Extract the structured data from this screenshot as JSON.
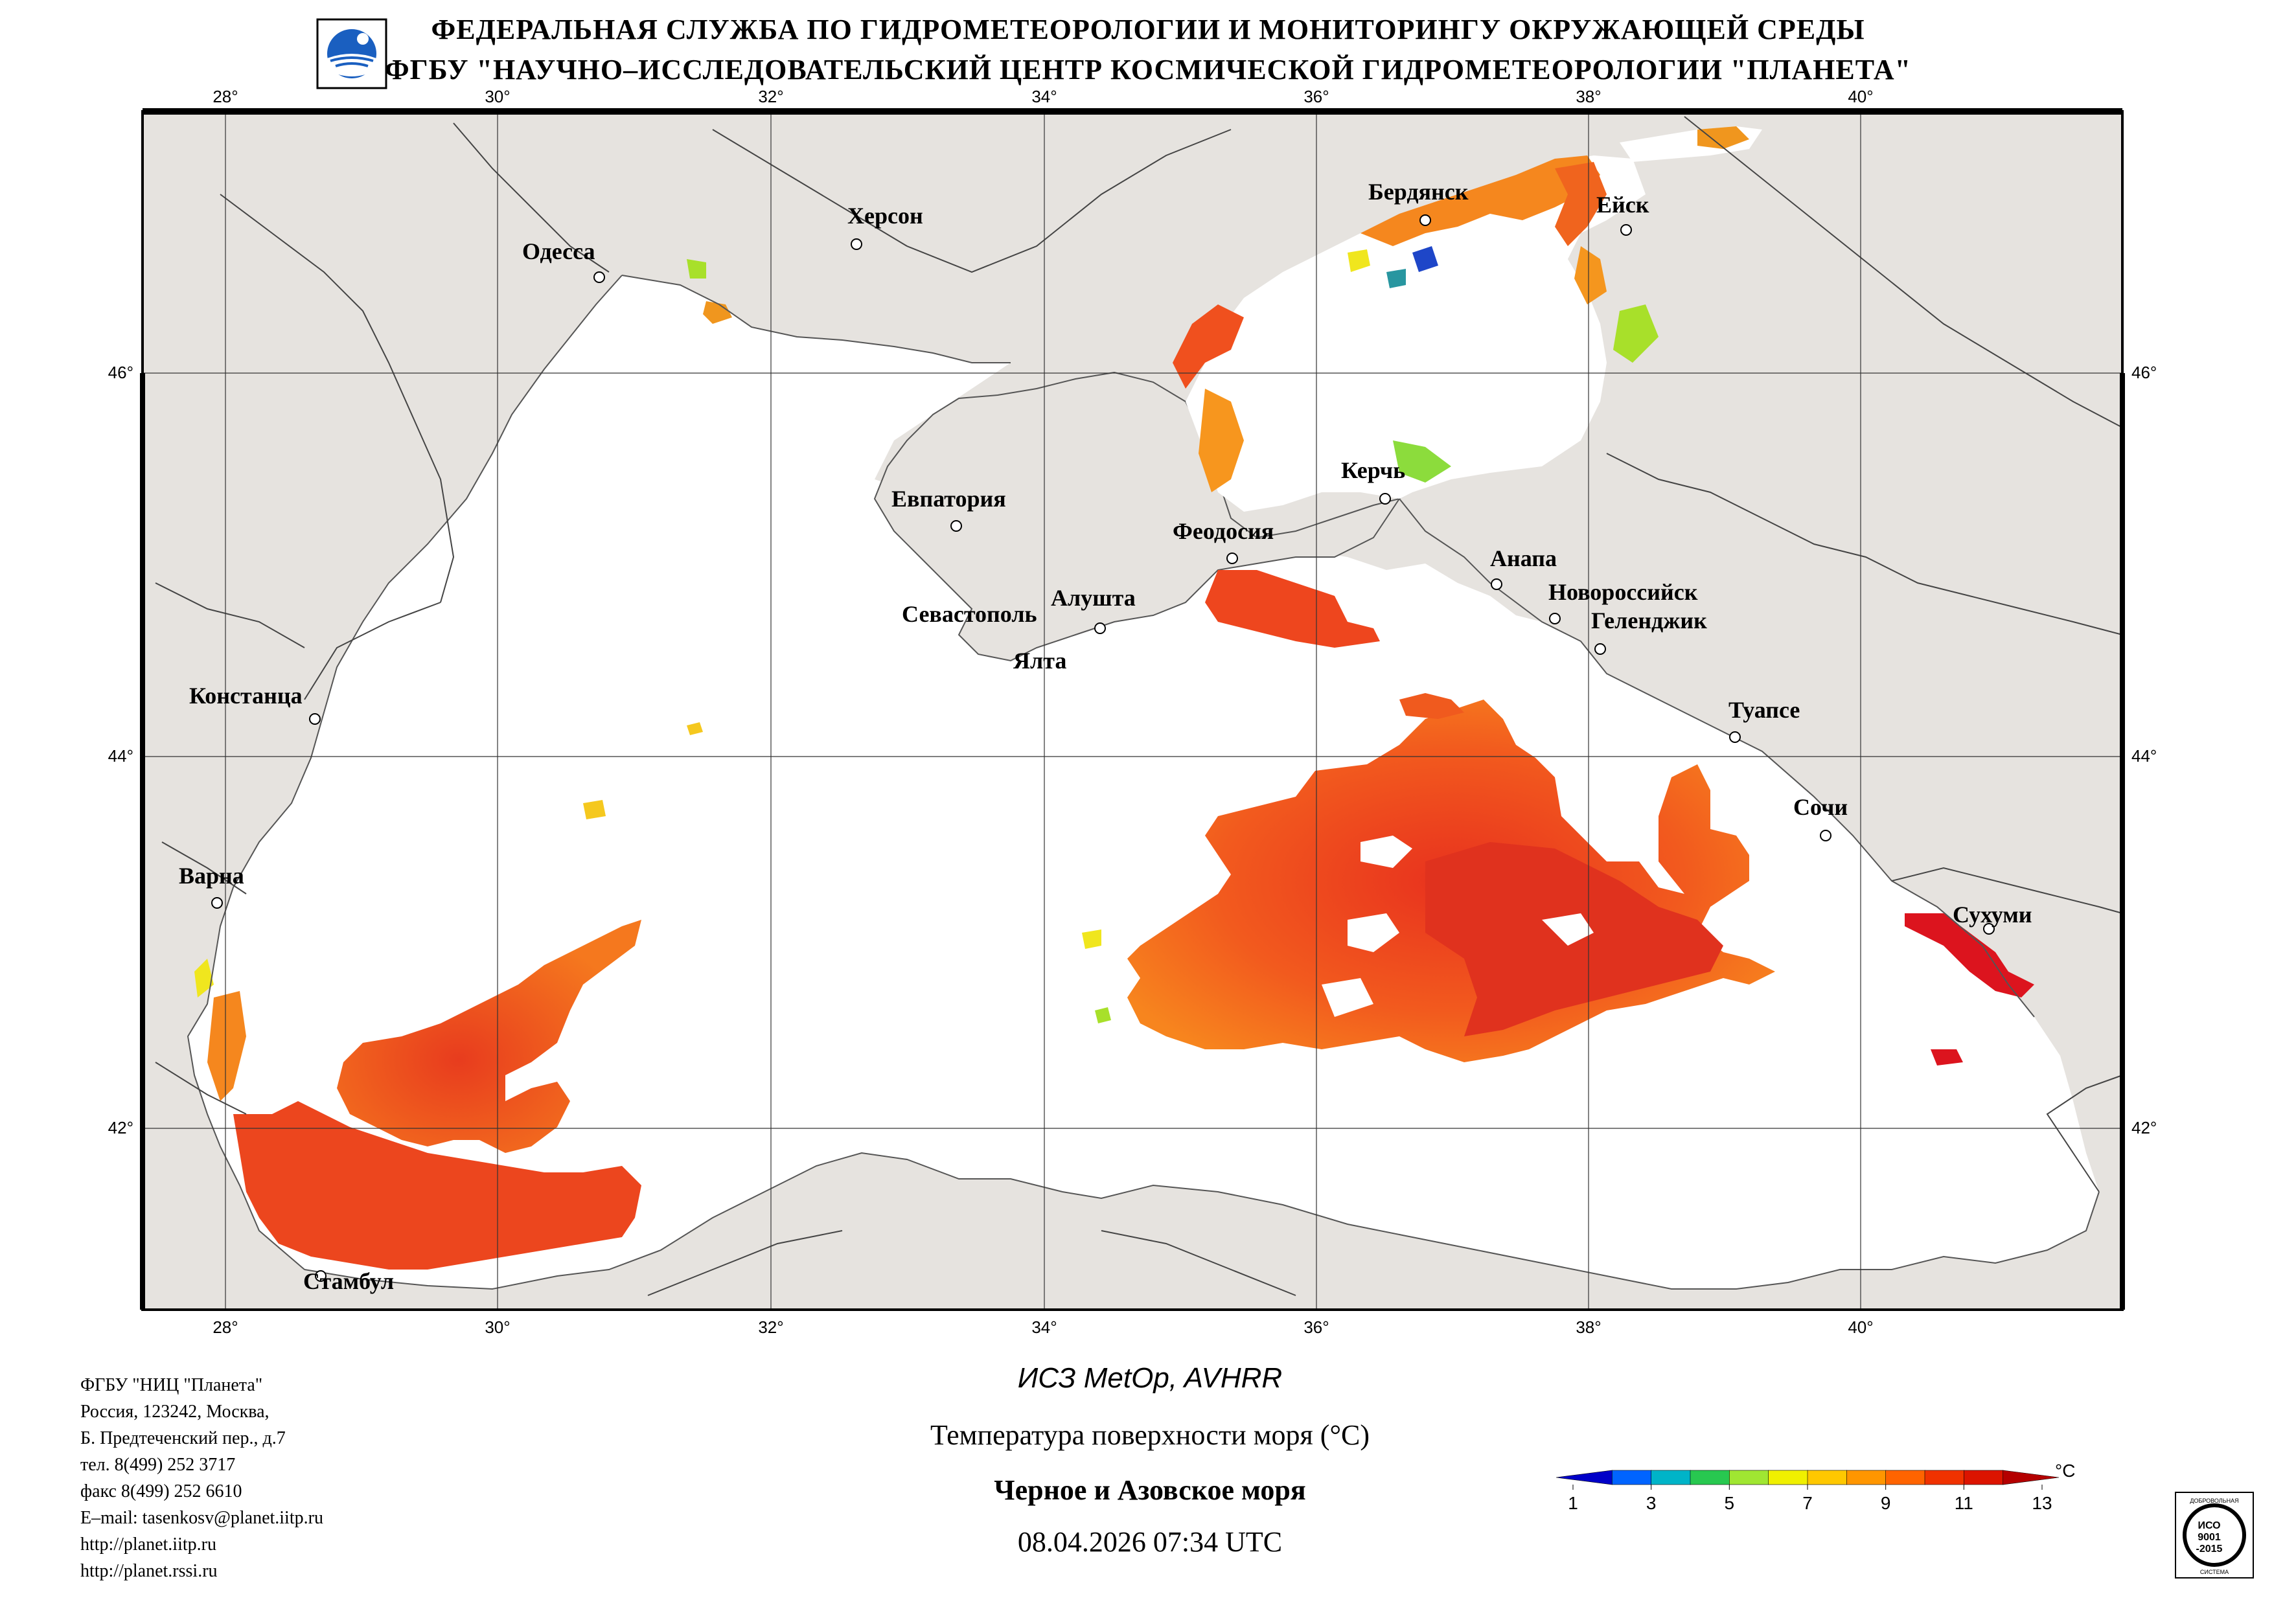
{
  "header": {
    "line1": "ФЕДЕРАЛЬНАЯ СЛУЖБА ПО ГИДРОМЕТЕОРОЛОГИИ И МОНИТОРИНГУ ОКРУЖАЮЩЕЙ СРЕДЫ",
    "line2": "ФГБУ \"НАУЧНО–ИССЛЕДОВАТЕЛЬСКИЙ ЦЕНТР КОСМИЧЕСКОЙ ГИДРОМЕТЕОРОЛОГИИ \"ПЛАНЕТА\""
  },
  "map": {
    "longitude_ticks": [
      "28°",
      "30°",
      "32°",
      "34°",
      "36°",
      "38°",
      "40°"
    ],
    "latitude_ticks": [
      "46°",
      "44°",
      "42°"
    ],
    "cities": {
      "odessa": "Одесса",
      "kherson": "Херсон",
      "berdyansk": "Бердянск",
      "yeysk": "Ейск",
      "kerch": "Керчь",
      "yevpatoria": "Евпатория",
      "feodosia": "Феодосия",
      "anapa": "Анапа",
      "novorossiysk": "Новороссийск",
      "gelendzhik": "Геленджик",
      "sevastopol": "Севастополь",
      "alushta": "Алушта",
      "yalta": "Ялта",
      "constanta": "Констанца",
      "tuapse": "Туапсе",
      "sochi": "Сочи",
      "varna": "Варна",
      "sukhumi": "Сухуми",
      "istanbul": "Стамбул"
    },
    "colors": {
      "land": "#e6e3df",
      "sea_cloud": "#ffffff",
      "border_line": "#444444"
    }
  },
  "footer": {
    "org_lines": [
      "ФГБУ \"НИЦ \"Планета\"",
      "Россия, 123242, Москва,",
      "Б. Предтеченский пер., д.7",
      "тел. 8(499) 252 3717",
      "факс 8(499) 252 6610",
      "E–mail: tasenkosv@planet.iitp.ru",
      "http://planet.iitp.ru",
      "http://planet.rssi.ru"
    ],
    "satellite": "ИСЗ MetOp, AVHRR",
    "parameter": "Температура поверхности моря (°С)",
    "region": "Черное и Азовское моря",
    "datetime": "08.04.2026 07:34 UTC"
  },
  "colorbar": {
    "unit": "°C",
    "labels": [
      "1",
      "3",
      "5",
      "7",
      "9",
      "11",
      "13"
    ],
    "colors": [
      "#0000c8",
      "#0064ff",
      "#00b4c8",
      "#28c850",
      "#a0e632",
      "#f0f000",
      "#ffc800",
      "#ff9600",
      "#ff6400",
      "#f03200",
      "#dc1400",
      "#b40000"
    ]
  },
  "iso_badge": {
    "top_text": "ДОБРОВОЛЬНАЯ",
    "center_lines": [
      "ИСО",
      "9001",
      "-2015"
    ],
    "bottom_text": "СИСТЕМА"
  }
}
